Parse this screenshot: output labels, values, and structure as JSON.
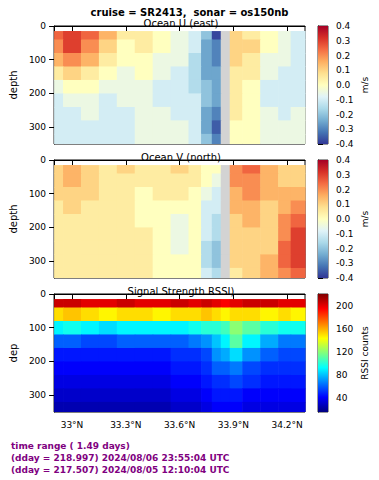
{
  "title": "cruise = SR2413,  sonar = os150nb",
  "footer": [
    "time range ( 1.49 days)",
    "(dday = 218.997) 2024/08/06 23:55:04 UTC",
    "(dday = 217.507) 2024/08/05 12:10:04 UTC"
  ],
  "chart_data": [
    {
      "type": "heatmap",
      "title": "Ocean U (east)",
      "y_label": "depth",
      "color": "RdYlBu_r",
      "xlim": [
        32.9,
        34.3
      ],
      "xticks": [
        {
          "value": 33,
          "label": "33°N"
        },
        {
          "value": 33.3,
          "label": "33.3°N"
        },
        {
          "value": 33.6,
          "label": "33.6°N"
        },
        {
          "value": 33.9,
          "label": "33.9°N"
        },
        {
          "value": 34.2,
          "label": "34.2°N"
        }
      ],
      "ylim": [
        0,
        350
      ],
      "yticks": [
        0,
        100,
        200,
        300
      ],
      "tick_labels": "y",
      "x_edges": [
        32.9,
        32.95,
        33.05,
        33.15,
        33.25,
        33.35,
        33.45,
        33.55,
        33.65,
        33.72,
        33.78,
        33.83,
        33.88,
        33.95,
        34.05,
        34.15,
        34.22,
        34.3
      ],
      "y_edges": [
        15,
        40,
        80,
        120,
        160,
        200,
        240,
        280,
        320,
        350
      ],
      "values": [
        [
          0.25,
          0.3,
          0.25,
          0.15,
          0.05,
          0.05,
          0.0,
          -0.05,
          -0.1,
          -0.2,
          -0.38,
          null,
          0.1,
          0.05,
          0.0,
          -0.05,
          -0.1
        ],
        [
          0.2,
          0.3,
          0.2,
          0.1,
          0.0,
          0.05,
          0.0,
          -0.05,
          -0.1,
          -0.25,
          -0.3,
          null,
          0.1,
          0.1,
          0.0,
          -0.05,
          -0.1
        ],
        [
          0.15,
          0.2,
          0.15,
          0.05,
          0.0,
          0.0,
          -0.05,
          -0.05,
          -0.15,
          -0.25,
          -0.3,
          null,
          0.1,
          0.05,
          -0.05,
          -0.05,
          -0.1
        ],
        [
          0.05,
          0.1,
          0.05,
          0.0,
          -0.05,
          0.0,
          -0.05,
          -0.1,
          -0.15,
          -0.25,
          -0.25,
          null,
          0.05,
          0.05,
          -0.05,
          -0.1,
          -0.1
        ],
        [
          -0.05,
          0.0,
          0.0,
          -0.05,
          -0.05,
          -0.05,
          -0.1,
          -0.1,
          -0.15,
          -0.2,
          -0.25,
          null,
          0.05,
          0.0,
          -0.1,
          -0.1,
          -0.1
        ],
        [
          -0.1,
          -0.05,
          -0.05,
          -0.1,
          -0.05,
          -0.05,
          -0.1,
          -0.1,
          -0.1,
          -0.2,
          -0.25,
          null,
          0.05,
          0.0,
          -0.1,
          -0.1,
          -0.1
        ],
        [
          -0.1,
          -0.1,
          -0.05,
          -0.1,
          -0.1,
          -0.05,
          -0.05,
          -0.1,
          -0.1,
          -0.25,
          -0.3,
          null,
          0.05,
          0.0,
          -0.05,
          -0.1,
          -0.05
        ],
        [
          -0.1,
          -0.1,
          -0.1,
          -0.1,
          -0.1,
          -0.05,
          -0.05,
          -0.05,
          -0.1,
          -0.25,
          -0.35,
          null,
          0.0,
          0.0,
          -0.05,
          -0.05,
          -0.05
        ],
        [
          -0.1,
          -0.1,
          -0.1,
          -0.1,
          -0.1,
          -0.05,
          -0.05,
          -0.05,
          -0.1,
          -0.2,
          -0.3,
          null,
          0.0,
          0.0,
          -0.05,
          -0.05,
          -0.05
        ]
      ],
      "colorbar_range": [
        -0.4,
        0.4
      ],
      "colorbar_ticks": [
        -0.4,
        -0.3,
        -0.2,
        -0.1,
        {
          "value": 0,
          "label": "0.0"
        },
        0.1,
        0.2,
        0.3,
        0.4
      ],
      "colorbar_label": "m/s"
    },
    {
      "type": "heatmap",
      "title": "Ocean V (north)",
      "y_label": "depth",
      "color": "RdYlBu_r",
      "xlim": [
        32.9,
        34.3
      ],
      "xticks": [
        {
          "value": 33,
          "label": "33°N"
        },
        {
          "value": 33.3,
          "label": "33.3°N"
        },
        {
          "value": 33.6,
          "label": "33.6°N"
        },
        {
          "value": 33.9,
          "label": "33.9°N"
        },
        {
          "value": 34.2,
          "label": "34.2°N"
        }
      ],
      "ylim": [
        0,
        350
      ],
      "yticks": [
        0,
        100,
        200,
        300
      ],
      "tick_labels": "y",
      "x_edges": [
        32.9,
        32.95,
        33.05,
        33.15,
        33.25,
        33.35,
        33.45,
        33.55,
        33.65,
        33.72,
        33.78,
        33.83,
        33.88,
        33.95,
        34.05,
        34.15,
        34.22,
        34.3
      ],
      "y_edges": [
        15,
        40,
        80,
        120,
        160,
        200,
        240,
        280,
        320,
        350
      ],
      "values": [
        [
          0.1,
          0.15,
          0.1,
          0.05,
          0.1,
          0.05,
          0.05,
          0.1,
          0.05,
          0.0,
          0.0,
          null,
          0.2,
          0.25,
          0.15,
          0.1,
          0.1
        ],
        [
          0.1,
          0.15,
          0.1,
          0.05,
          0.05,
          0.05,
          0.05,
          0.05,
          0.05,
          0.0,
          -0.05,
          null,
          0.2,
          0.2,
          0.15,
          0.1,
          0.1
        ],
        [
          0.1,
          0.1,
          0.1,
          0.05,
          0.05,
          0.0,
          0.05,
          0.05,
          0.0,
          -0.05,
          -0.1,
          null,
          0.15,
          0.2,
          0.15,
          0.15,
          0.15
        ],
        [
          0.05,
          0.1,
          0.05,
          0.05,
          0.05,
          0.0,
          0.0,
          0.0,
          0.0,
          -0.1,
          -0.1,
          null,
          0.15,
          0.15,
          0.1,
          0.15,
          0.2
        ],
        [
          0.05,
          0.05,
          0.05,
          0.05,
          0.05,
          0.0,
          0.0,
          -0.05,
          0.0,
          -0.1,
          -0.15,
          null,
          0.1,
          0.15,
          0.1,
          0.2,
          0.25
        ],
        [
          0.05,
          0.05,
          0.05,
          0.05,
          0.05,
          0.05,
          0.0,
          -0.05,
          0.0,
          -0.1,
          -0.15,
          null,
          0.1,
          0.1,
          0.1,
          0.2,
          0.3
        ],
        [
          0.05,
          0.05,
          0.05,
          0.05,
          0.05,
          0.05,
          0.0,
          -0.05,
          0.0,
          -0.15,
          -0.2,
          null,
          0.1,
          0.1,
          0.1,
          0.25,
          0.3
        ],
        [
          0.05,
          0.05,
          0.05,
          0.05,
          0.05,
          0.05,
          0.0,
          0.0,
          0.0,
          -0.15,
          -0.2,
          null,
          0.1,
          0.1,
          0.15,
          0.25,
          0.3
        ],
        [
          0.05,
          0.05,
          0.05,
          0.05,
          0.05,
          0.05,
          0.0,
          0.0,
          0.0,
          -0.1,
          -0.15,
          null,
          0.05,
          0.1,
          0.15,
          0.2,
          0.25
        ]
      ],
      "colorbar_range": [
        -0.4,
        0.4
      ],
      "colorbar_ticks": [
        -0.4,
        -0.3,
        -0.2,
        -0.1,
        {
          "value": 0,
          "label": "0.0"
        },
        0.1,
        0.2,
        0.3,
        0.4
      ],
      "colorbar_label": "m/s"
    },
    {
      "type": "heatmap",
      "title": "Signal Strength RSSI)",
      "y_label": "dep",
      "color": "jet",
      "xlim": [
        32.9,
        34.3
      ],
      "xticks": [
        {
          "value": 33,
          "label": "33°N"
        },
        {
          "value": 33.3,
          "label": "33.3°N"
        },
        {
          "value": 33.6,
          "label": "33.6°N"
        },
        {
          "value": 33.9,
          "label": "33.9°N"
        },
        {
          "value": 34.2,
          "label": "34.2°N"
        }
      ],
      "ylim": [
        0,
        350
      ],
      "yticks": [
        0,
        100,
        200,
        300
      ],
      "x_edges": [
        32.9,
        32.95,
        33.05,
        33.15,
        33.25,
        33.35,
        33.45,
        33.55,
        33.65,
        33.72,
        33.78,
        33.83,
        33.88,
        33.95,
        34.05,
        34.15,
        34.22,
        34.3
      ],
      "y_edges": [
        15,
        40,
        80,
        120,
        160,
        200,
        240,
        280,
        320,
        350
      ],
      "values": [
        [
          205,
          205,
          200,
          200,
          205,
          200,
          200,
          205,
          200,
          205,
          200,
          195,
          200,
          205,
          205,
          200,
          200
        ],
        [
          150,
          155,
          150,
          145,
          150,
          150,
          145,
          150,
          150,
          155,
          150,
          145,
          150,
          150,
          145,
          150,
          145
        ],
        [
          90,
          95,
          90,
          85,
          90,
          90,
          90,
          90,
          95,
          100,
          100,
          105,
          120,
          110,
          100,
          95,
          95
        ],
        [
          60,
          60,
          55,
          55,
          60,
          60,
          60,
          60,
          65,
          70,
          80,
          90,
          110,
          90,
          75,
          65,
          65
        ],
        [
          45,
          45,
          45,
          45,
          45,
          45,
          45,
          50,
          50,
          55,
          70,
          75,
          85,
          70,
          60,
          55,
          55
        ],
        [
          40,
          40,
          40,
          40,
          40,
          40,
          40,
          45,
          45,
          50,
          60,
          60,
          65,
          55,
          50,
          50,
          50
        ],
        [
          35,
          35,
          35,
          35,
          35,
          35,
          35,
          40,
          40,
          45,
          50,
          50,
          55,
          50,
          45,
          45,
          45
        ],
        [
          30,
          30,
          30,
          30,
          30,
          30,
          30,
          35,
          35,
          40,
          45,
          45,
          45,
          40,
          40,
          40,
          40
        ],
        [
          25,
          25,
          25,
          25,
          25,
          25,
          25,
          30,
          30,
          35,
          40,
          40,
          40,
          35,
          35,
          35,
          35
        ]
      ],
      "colorbar_range": [
        15,
        220
      ],
      "colorbar_ticks": [
        40,
        80,
        120,
        160,
        200
      ],
      "colorbar_label": "RSSI counts"
    }
  ]
}
